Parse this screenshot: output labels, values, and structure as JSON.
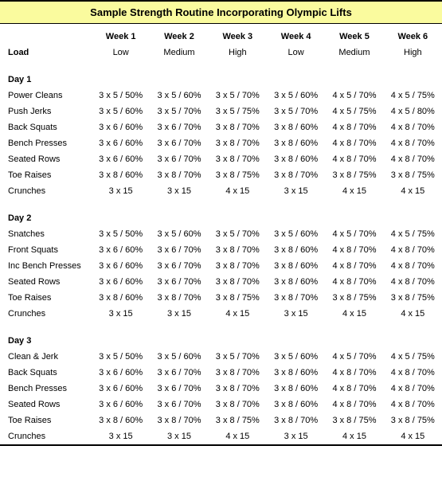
{
  "title": "Sample Strength Routine Incorporating Olympic Lifts",
  "title_background": "#fafb9e",
  "background": "#ffffff",
  "border_color": "#000000",
  "weeks": [
    "Week 1",
    "Week 2",
    "Week 3",
    "Week 4",
    "Week 5",
    "Week 6"
  ],
  "load_label": "Load",
  "loads": [
    "Low",
    "Medium",
    "High",
    "Low",
    "Medium",
    "High"
  ],
  "days": [
    {
      "name": "Day 1",
      "rows": [
        {
          "ex": "Power Cleans",
          "v": [
            "3 x 5 / 50%",
            "3 x 5 / 60%",
            "3 x 5 / 70%",
            "3 x 5 / 60%",
            "4 x 5 / 70%",
            "4 x 5 / 75%"
          ]
        },
        {
          "ex": "Push Jerks",
          "v": [
            "3 x 5 / 60%",
            "3 x 5 / 70%",
            "3 x 5 / 75%",
            "3 x 5 / 70%",
            "4 x 5 / 75%",
            "4 x 5 / 80%"
          ]
        },
        {
          "ex": "Back Squats",
          "v": [
            "3 x 6 / 60%",
            "3 x 6 / 70%",
            "3 x 8 / 70%",
            "3 x 8 / 60%",
            "4 x 8 / 70%",
            "4 x 8 / 70%"
          ]
        },
        {
          "ex": "Bench Presses",
          "v": [
            "3 x 6 / 60%",
            "3 x 6 / 70%",
            "3 x 8 / 70%",
            "3 x 8 / 60%",
            "4 x 8 / 70%",
            "4 x 8 / 70%"
          ]
        },
        {
          "ex": "Seated Rows",
          "v": [
            "3 x 6 / 60%",
            "3 x 6 / 70%",
            "3 x 8 / 70%",
            "3 x 8 / 60%",
            "4 x 8 / 70%",
            "4 x 8 / 70%"
          ]
        },
        {
          "ex": "Toe Raises",
          "v": [
            "3 x 8 / 60%",
            "3 x 8 / 70%",
            "3 x 8 / 75%",
            "3 x 8 / 70%",
            "3 x 8 / 75%",
            "3 x 8 / 75%"
          ]
        },
        {
          "ex": "Crunches",
          "v": [
            "3 x 15",
            "3 x 15",
            "4 x 15",
            "3 x 15",
            "4 x 15",
            "4 x 15"
          ]
        }
      ]
    },
    {
      "name": "Day 2",
      "rows": [
        {
          "ex": "Snatches",
          "v": [
            "3 x 5 / 50%",
            "3 x 5 / 60%",
            "3 x 5 / 70%",
            "3 x 5 / 60%",
            "4 x 5 / 70%",
            "4 x 5 / 75%"
          ]
        },
        {
          "ex": "Front Squats",
          "v": [
            "3 x 6 / 60%",
            "3 x 6 / 70%",
            "3 x 8 / 70%",
            "3 x 8 / 60%",
            "4 x 8 / 70%",
            "4 x 8 / 70%"
          ]
        },
        {
          "ex": "Inc Bench Presses",
          "v": [
            "3 x 6 / 60%",
            "3 x 6 / 70%",
            "3 x 8 / 70%",
            "3 x 8 / 60%",
            "4 x 8 / 70%",
            "4 x 8 / 70%"
          ]
        },
        {
          "ex": "Seated Rows",
          "v": [
            "3 x 6 / 60%",
            "3 x 6 / 70%",
            "3 x 8 / 70%",
            "3 x 8 / 60%",
            "4 x 8 / 70%",
            "4 x 8 / 70%"
          ]
        },
        {
          "ex": "Toe Raises",
          "v": [
            "3 x 8 / 60%",
            "3 x 8 / 70%",
            "3 x 8 / 75%",
            "3 x 8 / 70%",
            "3 x 8 / 75%",
            "3 x 8 / 75%"
          ]
        },
        {
          "ex": "Crunches",
          "v": [
            "3 x 15",
            "3 x 15",
            "4 x 15",
            "3 x 15",
            "4 x 15",
            "4 x 15"
          ]
        }
      ]
    },
    {
      "name": "Day 3",
      "rows": [
        {
          "ex": "Clean & Jerk",
          "v": [
            "3 x 5 / 50%",
            "3 x 5 / 60%",
            "3 x 5 / 70%",
            "3 x 5 / 60%",
            "4 x 5 / 70%",
            "4 x 5 / 75%"
          ]
        },
        {
          "ex": "Back Squats",
          "v": [
            "3 x 6 / 60%",
            "3 x 6 / 70%",
            "3 x 8 / 70%",
            "3 x 8 / 60%",
            "4 x 8 / 70%",
            "4 x 8 / 70%"
          ]
        },
        {
          "ex": "Bench Presses",
          "v": [
            "3 x 6 / 60%",
            "3 x 6 / 70%",
            "3 x 8 / 70%",
            "3 x 8 / 60%",
            "4 x 8 / 70%",
            "4 x 8 / 70%"
          ]
        },
        {
          "ex": "Seated Rows",
          "v": [
            "3 x 6 / 60%",
            "3 x 6 / 70%",
            "3 x 8 / 70%",
            "3 x 8 / 60%",
            "4 x 8 / 70%",
            "4 x 8 / 70%"
          ]
        },
        {
          "ex": "Toe Raises",
          "v": [
            "3 x 8 / 60%",
            "3 x 8 / 70%",
            "3 x 8 / 75%",
            "3 x 8 / 70%",
            "3 x 8 / 75%",
            "3 x 8 / 75%"
          ]
        },
        {
          "ex": "Crunches",
          "v": [
            "3 x 15",
            "3 x 15",
            "4 x 15",
            "3 x 15",
            "4 x 15",
            "4 x 15"
          ]
        }
      ]
    }
  ]
}
